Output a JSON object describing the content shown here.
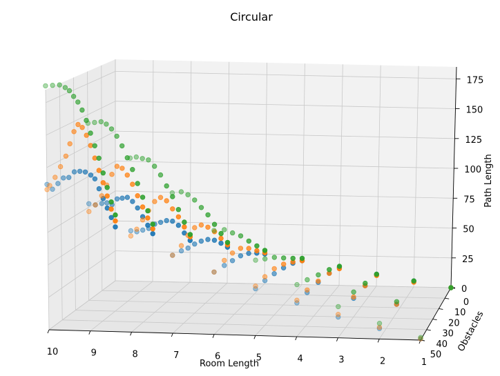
{
  "chart_data": {
    "type": "scatter",
    "projection": "3d",
    "title": "Circular",
    "xlabel": "Room Length",
    "ylabel": "Obstacles",
    "zlabel": "Path Length",
    "xlim": [
      10,
      1
    ],
    "ylim": [
      0,
      50
    ],
    "zlim": [
      0,
      185
    ],
    "x_ticks": [
      "10",
      "9",
      "8",
      "7",
      "6",
      "5",
      "4",
      "3",
      "2",
      "1"
    ],
    "y_ticks": [
      "0",
      "10",
      "20",
      "30",
      "40",
      "50"
    ],
    "z_ticks": [
      "0",
      "25",
      "50",
      "75",
      "100",
      "125",
      "150",
      "175"
    ],
    "grid": true,
    "legend": "none",
    "series_colors": [
      "#1f77b4",
      "#ff7f0e",
      "#2ca02c"
    ],
    "series": [
      {
        "color": "#1f77b4",
        "points": [
          [
            10,
            0,
            45
          ],
          [
            10,
            3,
            55
          ],
          [
            10,
            6,
            65
          ],
          [
            10,
            9,
            75
          ],
          [
            10,
            12,
            85
          ],
          [
            10,
            15,
            95
          ],
          [
            10,
            18,
            100
          ],
          [
            10,
            22,
            105
          ],
          [
            10,
            26,
            108
          ],
          [
            10,
            30,
            110
          ],
          [
            10,
            34,
            108
          ],
          [
            10,
            38,
            110
          ],
          [
            10,
            42,
            108
          ],
          [
            10,
            46,
            106
          ],
          [
            10,
            50,
            112
          ],
          [
            9,
            0,
            40
          ],
          [
            9,
            4,
            50
          ],
          [
            9,
            8,
            60
          ],
          [
            9,
            12,
            70
          ],
          [
            9,
            16,
            78
          ],
          [
            9,
            20,
            84
          ],
          [
            9,
            24,
            86
          ],
          [
            9,
            28,
            88
          ],
          [
            9,
            32,
            86
          ],
          [
            9,
            36,
            90
          ],
          [
            9,
            40,
            92
          ],
          [
            9,
            45,
            94
          ],
          [
            9,
            50,
            98
          ],
          [
            8,
            0,
            35
          ],
          [
            8,
            5,
            45
          ],
          [
            8,
            10,
            55
          ],
          [
            8,
            15,
            62
          ],
          [
            8,
            20,
            66
          ],
          [
            8,
            25,
            68
          ],
          [
            8,
            30,
            70
          ],
          [
            8,
            35,
            70
          ],
          [
            8,
            40,
            72
          ],
          [
            8,
            45,
            74
          ],
          [
            8,
            50,
            78
          ],
          [
            7,
            0,
            30
          ],
          [
            7,
            6,
            38
          ],
          [
            7,
            12,
            45
          ],
          [
            7,
            18,
            50
          ],
          [
            7,
            24,
            53
          ],
          [
            7,
            30,
            55
          ],
          [
            7,
            36,
            56
          ],
          [
            7,
            42,
            58
          ],
          [
            7,
            50,
            60
          ],
          [
            6,
            0,
            25
          ],
          [
            6,
            8,
            32
          ],
          [
            6,
            16,
            38
          ],
          [
            6,
            24,
            42
          ],
          [
            6,
            32,
            44
          ],
          [
            6,
            40,
            46
          ],
          [
            6,
            50,
            48
          ],
          [
            5,
            0,
            20
          ],
          [
            5,
            10,
            26
          ],
          [
            5,
            20,
            30
          ],
          [
            5,
            30,
            33
          ],
          [
            5,
            40,
            35
          ],
          [
            5,
            50,
            36
          ],
          [
            4,
            0,
            15
          ],
          [
            4,
            12,
            20
          ],
          [
            4,
            25,
            23
          ],
          [
            4,
            38,
            25
          ],
          [
            4,
            50,
            26
          ],
          [
            3,
            0,
            10
          ],
          [
            3,
            15,
            13
          ],
          [
            3,
            30,
            15
          ],
          [
            3,
            50,
            16
          ],
          [
            2,
            0,
            5
          ],
          [
            2,
            25,
            7
          ],
          [
            2,
            50,
            8
          ],
          [
            1,
            0,
            0
          ],
          [
            1,
            50,
            1
          ]
        ]
      },
      {
        "color": "#ff7f0e",
        "points": [
          [
            10,
            0,
            50
          ],
          [
            10,
            3,
            62
          ],
          [
            10,
            6,
            75
          ],
          [
            10,
            9,
            88
          ],
          [
            10,
            12,
            100
          ],
          [
            10,
            15,
            112
          ],
          [
            10,
            18,
            124
          ],
          [
            10,
            21,
            134
          ],
          [
            10,
            24,
            142
          ],
          [
            10,
            27,
            146
          ],
          [
            10,
            30,
            142
          ],
          [
            10,
            33,
            134
          ],
          [
            10,
            36,
            126
          ],
          [
            10,
            40,
            120
          ],
          [
            10,
            44,
            114
          ],
          [
            10,
            48,
            110
          ],
          [
            10,
            50,
            108
          ],
          [
            9,
            0,
            44
          ],
          [
            9,
            4,
            56
          ],
          [
            9,
            8,
            68
          ],
          [
            9,
            12,
            80
          ],
          [
            9,
            16,
            92
          ],
          [
            9,
            20,
            102
          ],
          [
            9,
            24,
            110
          ],
          [
            9,
            28,
            114
          ],
          [
            9,
            32,
            110
          ],
          [
            9,
            36,
            104
          ],
          [
            9,
            40,
            98
          ],
          [
            9,
            45,
            94
          ],
          [
            9,
            50,
            92
          ],
          [
            8,
            0,
            38
          ],
          [
            8,
            5,
            50
          ],
          [
            8,
            10,
            62
          ],
          [
            8,
            15,
            72
          ],
          [
            8,
            20,
            82
          ],
          [
            8,
            25,
            88
          ],
          [
            8,
            30,
            88
          ],
          [
            8,
            35,
            84
          ],
          [
            8,
            40,
            80
          ],
          [
            8,
            45,
            76
          ],
          [
            8,
            50,
            74
          ],
          [
            7,
            0,
            32
          ],
          [
            7,
            6,
            42
          ],
          [
            7,
            12,
            52
          ],
          [
            7,
            18,
            60
          ],
          [
            7,
            24,
            66
          ],
          [
            7,
            30,
            68
          ],
          [
            7,
            36,
            66
          ],
          [
            7,
            42,
            62
          ],
          [
            7,
            50,
            60
          ],
          [
            6,
            0,
            26
          ],
          [
            6,
            8,
            34
          ],
          [
            6,
            16,
            42
          ],
          [
            6,
            24,
            48
          ],
          [
            6,
            32,
            50
          ],
          [
            6,
            40,
            50
          ],
          [
            6,
            50,
            48
          ],
          [
            5,
            0,
            20
          ],
          [
            5,
            10,
            27
          ],
          [
            5,
            20,
            33
          ],
          [
            5,
            30,
            37
          ],
          [
            5,
            40,
            38
          ],
          [
            5,
            50,
            38
          ],
          [
            4,
            0,
            14
          ],
          [
            4,
            12,
            20
          ],
          [
            4,
            25,
            24
          ],
          [
            4,
            38,
            27
          ],
          [
            4,
            50,
            28
          ],
          [
            3,
            0,
            9
          ],
          [
            3,
            15,
            13
          ],
          [
            3,
            30,
            16
          ],
          [
            3,
            50,
            18
          ],
          [
            2,
            0,
            4
          ],
          [
            2,
            25,
            7
          ],
          [
            2,
            50,
            9
          ],
          [
            1,
            0,
            0
          ],
          [
            1,
            50,
            1
          ]
        ]
      },
      {
        "color": "#2ca02c",
        "points": [
          [
            10,
            0,
            55
          ],
          [
            10,
            3,
            68
          ],
          [
            10,
            6,
            82
          ],
          [
            10,
            9,
            96
          ],
          [
            10,
            12,
            110
          ],
          [
            10,
            15,
            122
          ],
          [
            10,
            18,
            134
          ],
          [
            10,
            21,
            146
          ],
          [
            10,
            24,
            156
          ],
          [
            10,
            27,
            164
          ],
          [
            10,
            30,
            170
          ],
          [
            10,
            33,
            176
          ],
          [
            10,
            36,
            180
          ],
          [
            10,
            40,
            184
          ],
          [
            10,
            45,
            186
          ],
          [
            10,
            50,
            188
          ],
          [
            9,
            0,
            48
          ],
          [
            9,
            4,
            62
          ],
          [
            9,
            8,
            76
          ],
          [
            9,
            12,
            90
          ],
          [
            9,
            16,
            104
          ],
          [
            9,
            20,
            116
          ],
          [
            9,
            24,
            128
          ],
          [
            9,
            28,
            138
          ],
          [
            9,
            32,
            146
          ],
          [
            9,
            36,
            152
          ],
          [
            9,
            40,
            156
          ],
          [
            9,
            45,
            158
          ],
          [
            9,
            50,
            160
          ],
          [
            8,
            0,
            40
          ],
          [
            8,
            5,
            54
          ],
          [
            8,
            10,
            68
          ],
          [
            8,
            15,
            82
          ],
          [
            8,
            20,
            94
          ],
          [
            8,
            25,
            106
          ],
          [
            8,
            30,
            116
          ],
          [
            8,
            35,
            124
          ],
          [
            8,
            40,
            128
          ],
          [
            8,
            45,
            132
          ],
          [
            8,
            50,
            134
          ],
          [
            7,
            0,
            34
          ],
          [
            7,
            6,
            46
          ],
          [
            7,
            12,
            58
          ],
          [
            7,
            18,
            70
          ],
          [
            7,
            24,
            80
          ],
          [
            7,
            30,
            90
          ],
          [
            7,
            36,
            98
          ],
          [
            7,
            42,
            104
          ],
          [
            7,
            50,
            108
          ],
          [
            6,
            0,
            28
          ],
          [
            6,
            8,
            38
          ],
          [
            6,
            16,
            48
          ],
          [
            6,
            24,
            58
          ],
          [
            6,
            32,
            66
          ],
          [
            6,
            40,
            74
          ],
          [
            6,
            50,
            80
          ],
          [
            5,
            0,
            22
          ],
          [
            5,
            10,
            30
          ],
          [
            5,
            20,
            38
          ],
          [
            5,
            30,
            46
          ],
          [
            5,
            40,
            52
          ],
          [
            5,
            50,
            58
          ],
          [
            4,
            0,
            16
          ],
          [
            4,
            12,
            23
          ],
          [
            4,
            25,
            29
          ],
          [
            4,
            38,
            35
          ],
          [
            4,
            50,
            40
          ],
          [
            3,
            0,
            10
          ],
          [
            3,
            15,
            15
          ],
          [
            3,
            30,
            20
          ],
          [
            3,
            50,
            24
          ],
          [
            2,
            0,
            5
          ],
          [
            2,
            25,
            9
          ],
          [
            2,
            50,
            12
          ],
          [
            1,
            0,
            0
          ],
          [
            1,
            50,
            2
          ]
        ]
      }
    ]
  }
}
